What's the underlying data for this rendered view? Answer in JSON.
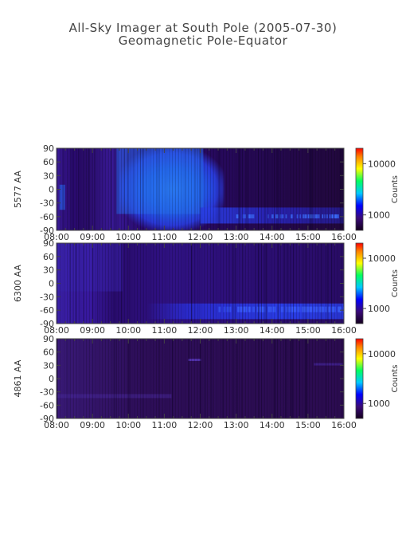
{
  "title": "All-Sky Imager at South Pole (2005-07-30)",
  "subtitle": "Geomagnetic Pole-Equator",
  "chart_data": [
    {
      "type": "heatmap",
      "ylabel": "5577 AA",
      "x_ticks": [
        "08:00",
        "09:00",
        "10:00",
        "11:00",
        "12:00",
        "13:00",
        "14:00",
        "15:00",
        "16:00"
      ],
      "xlim": [
        "08:00",
        "16:00"
      ],
      "y_ticks": [
        90,
        60,
        30,
        0,
        -30,
        -60,
        -90
      ],
      "ylim": [
        -90,
        90
      ],
      "colorbar": {
        "label": "Counts",
        "ticks": [
          10000,
          1000
        ],
        "scale": "log",
        "colormap": "rainbow"
      }
    },
    {
      "type": "heatmap",
      "ylabel": "6300 AA",
      "x_ticks": [
        "08:00",
        "09:00",
        "10:00",
        "11:00",
        "12:00",
        "13:00",
        "14:00",
        "15:00",
        "16:00"
      ],
      "xlim": [
        "08:00",
        "16:00"
      ],
      "y_ticks": [
        90,
        60,
        30,
        0,
        -30,
        -60,
        -90
      ],
      "ylim": [
        -90,
        90
      ],
      "colorbar": {
        "label": "Counts",
        "ticks": [
          10000,
          1000
        ],
        "scale": "log",
        "colormap": "rainbow"
      }
    },
    {
      "type": "heatmap",
      "ylabel": "4861 AA",
      "x_ticks": [
        "08:00",
        "09:00",
        "10:00",
        "11:00",
        "12:00",
        "13:00",
        "14:00",
        "15:00",
        "16:00"
      ],
      "xlim": [
        "08:00",
        "16:00"
      ],
      "y_ticks": [
        90,
        60,
        30,
        0,
        -30,
        -60,
        -90
      ],
      "ylim": [
        -90,
        90
      ],
      "colorbar": {
        "label": "Counts",
        "ticks": [
          10000,
          1000
        ],
        "scale": "log",
        "colormap": "rainbow"
      }
    }
  ]
}
